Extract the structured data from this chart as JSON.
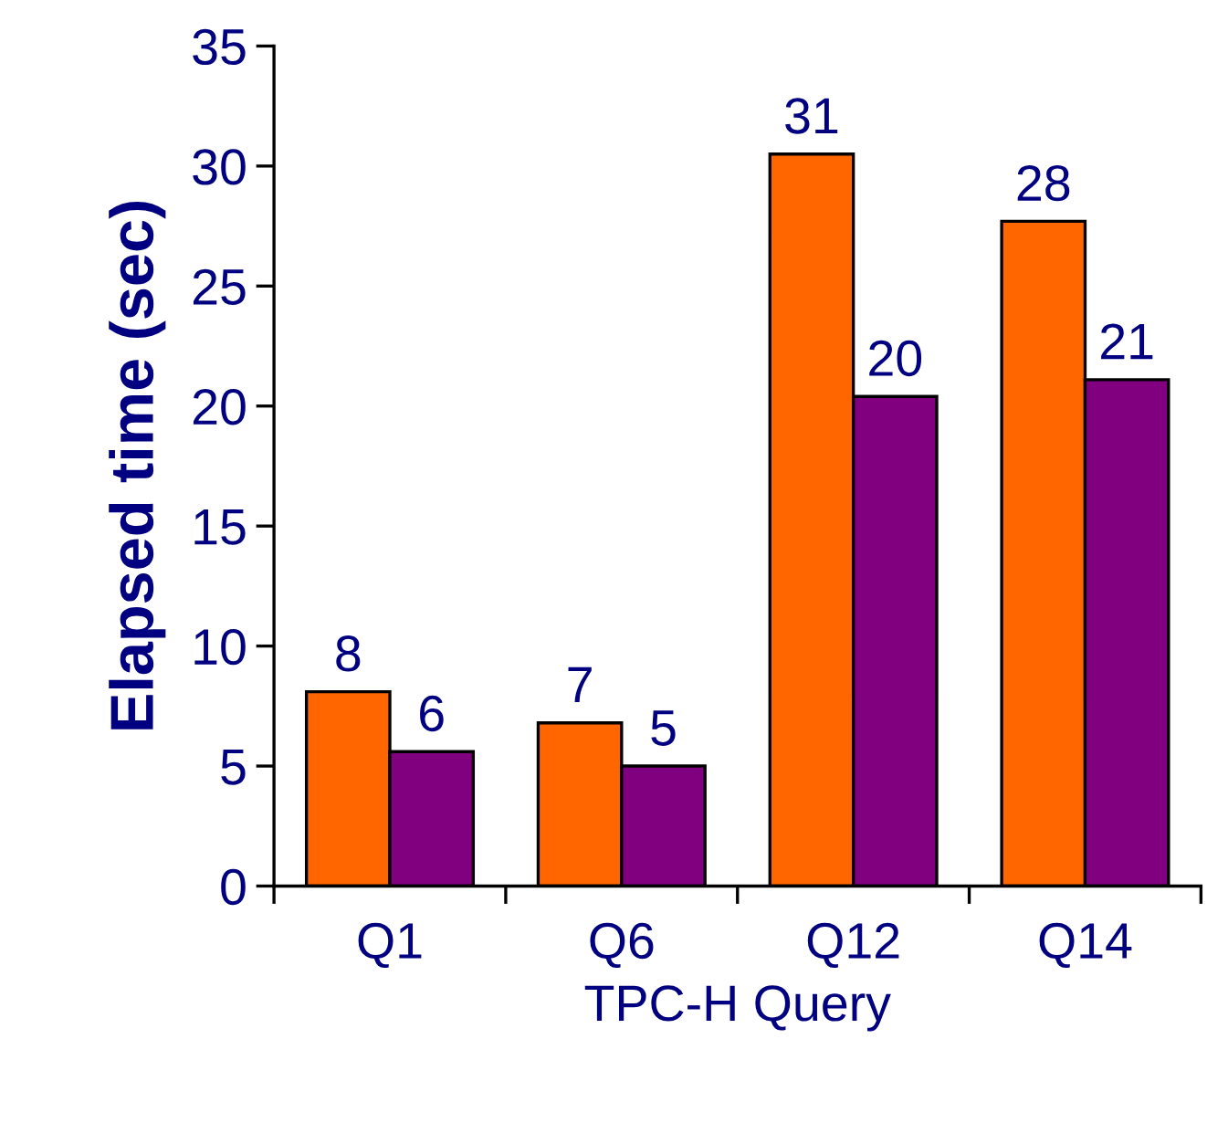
{
  "chart_data": {
    "type": "bar",
    "xlabel": "TPC-H Query",
    "ylabel": "Elapsed time (sec)",
    "categories": [
      "Q1",
      "Q6",
      "Q12",
      "Q14"
    ],
    "series": [
      {
        "color": "#ff6600",
        "values": [
          8.1,
          6.8,
          30.5,
          27.7
        ],
        "value_labels": [
          "8",
          "7",
          "31",
          "28"
        ]
      },
      {
        "color": "#800080",
        "values": [
          5.6,
          5.0,
          20.4,
          21.1
        ],
        "value_labels": [
          "6",
          "5",
          "20",
          "21"
        ]
      }
    ],
    "ylim": [
      0,
      35
    ],
    "yticks": [
      0,
      5,
      10,
      15,
      20,
      25,
      30,
      35
    ],
    "grid": false,
    "legend": false
  }
}
